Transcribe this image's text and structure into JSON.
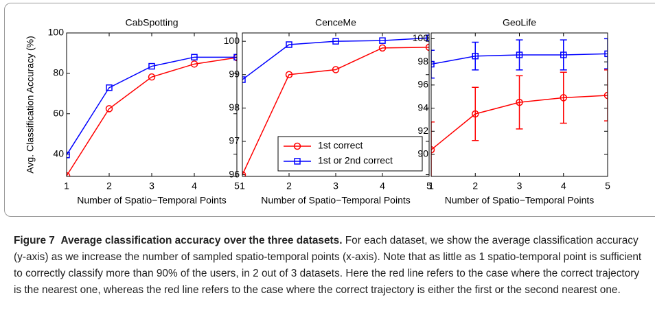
{
  "chart_data": [
    {
      "type": "line",
      "title": "CabSpotting",
      "xlabel": "Number of Spatio−Temporal Points",
      "ylabel": "Avg. Classification Accuracy (%)",
      "x": [
        1,
        2,
        3,
        4,
        5
      ],
      "xlim": [
        1,
        5
      ],
      "xticks": [
        1,
        2,
        3,
        4,
        5
      ],
      "ylim": [
        29,
        100
      ],
      "yticks": [
        40,
        60,
        80,
        100
      ],
      "series": [
        {
          "name": "1st correct",
          "color": "#ff0000",
          "marker": "circle",
          "values": [
            29.3,
            62.5,
            78.2,
            84.6,
            87.8
          ]
        },
        {
          "name": "1st or 2nd correct",
          "color": "#0000ff",
          "marker": "square",
          "values": [
            39.6,
            72.9,
            83.5,
            88,
            88
          ]
        }
      ]
    },
    {
      "type": "line",
      "title": "CenceMe",
      "xlabel": "Number of Spatio−Temporal Points",
      "x": [
        1,
        2,
        3,
        4,
        5
      ],
      "xlim": [
        1,
        5
      ],
      "xticks": [
        1,
        2,
        3,
        4,
        5
      ],
      "ylim": [
        95.95,
        100.25
      ],
      "yticks": [
        96,
        97,
        98,
        99,
        100
      ],
      "legend": "lower right",
      "series": [
        {
          "name": "1st correct",
          "color": "#ff0000",
          "marker": "circle",
          "values": [
            96,
            99,
            99.15,
            99.8,
            99.82
          ]
        },
        {
          "name": "1st or 2nd correct",
          "color": "#0000ff",
          "marker": "square",
          "values": [
            98.85,
            99.9,
            100,
            100.02,
            100.1
          ]
        }
      ]
    },
    {
      "type": "line",
      "title": "GeoLife",
      "xlabel": "Number of Spatio−Temporal Points",
      "x": [
        1,
        2,
        3,
        4,
        5
      ],
      "xlim": [
        1,
        5
      ],
      "xticks": [
        1,
        2,
        3,
        4,
        5
      ],
      "ylim": [
        88.1,
        100.5
      ],
      "yticks": [
        90,
        92,
        94,
        96,
        98,
        100
      ],
      "series": [
        {
          "name": "1st correct",
          "color": "#ff0000",
          "marker": "circle",
          "values": [
            90.4,
            93.5,
            94.5,
            94.9,
            95.1
          ],
          "errors": [
            2.4,
            2.3,
            2.3,
            2.2,
            2.2
          ]
        },
        {
          "name": "1st or 2nd correct",
          "color": "#0000ff",
          "marker": "square",
          "values": [
            97.8,
            98.5,
            98.6,
            98.6,
            98.7
          ],
          "errors": [
            1.2,
            1.2,
            1.3,
            1.3,
            1.3
          ]
        }
      ]
    }
  ],
  "caption": {
    "label": "Figure 7",
    "title": "Average classification accuracy over the three datasets.",
    "text": "For each dataset, we show the average classification accuracy (y-axis) as we increase the number of sampled spatio-temporal points (x-axis). Note that as little as 1 spatio-temporal point is sufficient to correctly classify more than 90% of the users, in 2 out of 3 datasets. Here the red line refers to the case where the correct trajectory is the nearest one, whereas the red line refers to the case where the correct trajectory is either the first or the second nearest one."
  }
}
